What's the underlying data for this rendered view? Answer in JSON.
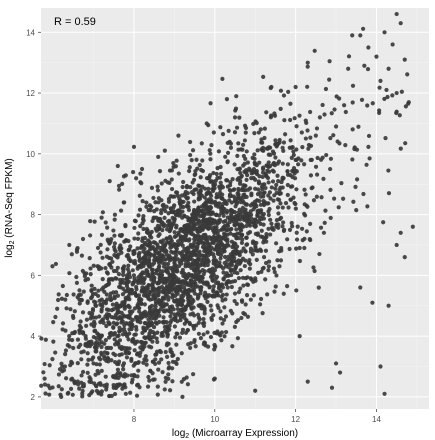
{
  "chart_data": {
    "type": "scatter",
    "title": "",
    "xlabel": {
      "prefix": "log",
      "sub": "2",
      "text": " (Microarray Expression)"
    },
    "ylabel": {
      "prefix": "log",
      "sub": "2",
      "text": " (RNA-Seq FPKM)"
    },
    "xlim": [
      5.7,
      15.3
    ],
    "ylim": [
      1.6,
      14.8
    ],
    "xticks": [
      8,
      10,
      12,
      14
    ],
    "yticks": [
      2,
      4,
      6,
      8,
      10,
      12,
      14
    ],
    "xtick_labels": [
      "8",
      "10",
      "12",
      "14"
    ],
    "ytick_labels": [
      "2",
      "4",
      "6",
      "8",
      "10",
      "12",
      "14"
    ],
    "annotation": "R =  0.59",
    "grid": true,
    "background": "#ebebeb",
    "point_color": "#3a3a3a",
    "n_points_approx": 3000,
    "note_points": "Approx. bivariate cloud: mean x≈9.2, mean y≈6.4, correlation 0.59; a representative sample of points is listed",
    "points": [
      [
        14.5,
        14.6
      ],
      [
        14.6,
        14.3
      ],
      [
        14.2,
        14.0
      ],
      [
        13.6,
        13.9
      ],
      [
        13.8,
        13.5
      ],
      [
        14.0,
        13.2
      ],
      [
        14.4,
        13.6
      ],
      [
        14.7,
        13.1
      ],
      [
        13.4,
        13.9
      ],
      [
        14.3,
        12.8
      ],
      [
        14.1,
        12.4
      ],
      [
        14.8,
        11.7
      ],
      [
        13.7,
        12.9
      ],
      [
        14.5,
        12.0
      ],
      [
        12.3,
        13.0
      ],
      [
        13.2,
        11.6
      ],
      [
        12.6,
        11.2
      ],
      [
        12.0,
        12.2
      ],
      [
        11.4,
        12.2
      ],
      [
        13.3,
        12.8
      ],
      [
        7.2,
        7.9
      ],
      [
        6.3,
        5.2
      ],
      [
        6.1,
        4.9
      ],
      [
        6.2,
        2.0
      ],
      [
        6.5,
        4.6
      ],
      [
        6.8,
        3.7
      ],
      [
        6.9,
        2.5
      ],
      [
        7.0,
        3.1
      ],
      [
        7.1,
        6.3
      ],
      [
        6.4,
        7.0
      ],
      [
        7.5,
        2.3
      ],
      [
        7.8,
        2.1
      ],
      [
        8.1,
        2.4
      ],
      [
        9.2,
        2.0
      ],
      [
        10.0,
        2.6
      ],
      [
        11.0,
        2.2
      ],
      [
        12.3,
        2.5
      ],
      [
        12.9,
        2.3
      ],
      [
        13.1,
        2.8
      ],
      [
        14.2,
        2.1
      ],
      [
        13.0,
        3.1
      ],
      [
        12.1,
        4.0
      ],
      [
        14.1,
        3.0
      ],
      [
        14.6,
        7.4
      ],
      [
        14.9,
        7.6
      ],
      [
        14.5,
        7.0
      ],
      [
        14.3,
        5.0
      ],
      [
        14.7,
        6.6
      ],
      [
        13.9,
        5.1
      ],
      [
        13.6,
        5.6
      ],
      [
        9.1,
        10.6
      ],
      [
        9.8,
        11.0
      ],
      [
        10.3,
        11.8
      ],
      [
        10.5,
        11.2
      ],
      [
        8.6,
        9.9
      ],
      [
        8.2,
        9.5
      ],
      [
        7.6,
        9.6
      ],
      [
        7.4,
        9.1
      ],
      [
        11.2,
        10.1
      ],
      [
        12.0,
        9.8
      ],
      [
        8.0,
        6.0
      ],
      [
        8.5,
        6.5
      ],
      [
        9.0,
        7.0
      ],
      [
        9.5,
        7.3
      ],
      [
        10.0,
        7.8
      ],
      [
        8.3,
        5.6
      ],
      [
        8.8,
        6.2
      ],
      [
        9.3,
        6.8
      ],
      [
        9.7,
        7.5
      ],
      [
        10.4,
        8.1
      ],
      [
        7.6,
        5.0
      ],
      [
        7.9,
        4.6
      ],
      [
        8.4,
        5.2
      ],
      [
        8.9,
        5.8
      ],
      [
        9.4,
        6.0
      ],
      [
        10.1,
        6.7
      ],
      [
        10.7,
        7.6
      ],
      [
        11.2,
        8.6
      ],
      [
        11.7,
        9.2
      ],
      [
        12.4,
        9.8
      ],
      [
        8.1,
        7.2
      ],
      [
        8.6,
        7.8
      ],
      [
        9.2,
        8.1
      ],
      [
        9.6,
        8.5
      ],
      [
        10.2,
        8.9
      ],
      [
        10.8,
        9.3
      ],
      [
        11.3,
        9.6
      ],
      [
        11.9,
        10.2
      ],
      [
        12.5,
        10.6
      ],
      [
        13.0,
        10.9
      ],
      [
        7.7,
        3.4
      ],
      [
        8.2,
        3.8
      ],
      [
        8.7,
        4.1
      ],
      [
        9.3,
        4.5
      ],
      [
        9.9,
        5.0
      ],
      [
        10.5,
        5.4
      ],
      [
        11.0,
        5.9
      ],
      [
        11.6,
        6.3
      ],
      [
        12.1,
        6.9
      ],
      [
        12.7,
        7.4
      ]
    ]
  }
}
